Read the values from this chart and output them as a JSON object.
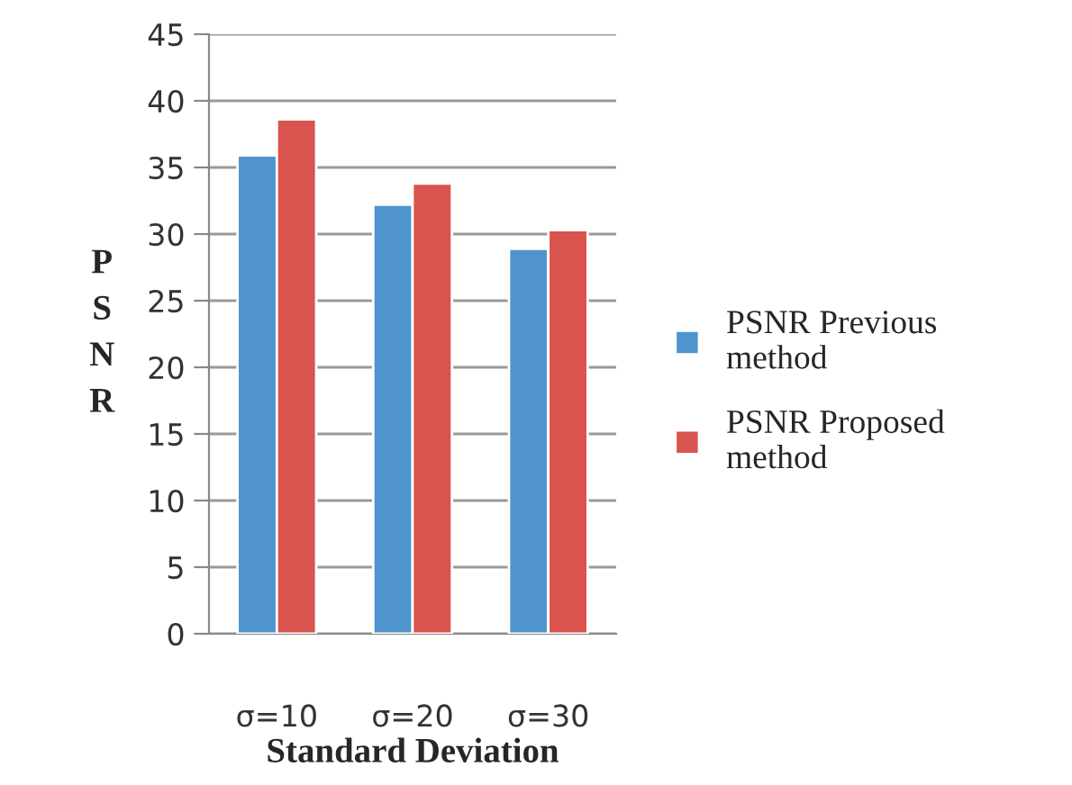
{
  "chart_data": {
    "type": "bar",
    "xlabel": "Standard Deviation",
    "ylabel": "PSNR",
    "categories": [
      "σ=10",
      "σ=20",
      "σ=30"
    ],
    "series": [
      {
        "name": "PSNR Previous method",
        "color": "#4f94cd",
        "values": [
          35.9,
          32.2,
          28.9
        ]
      },
      {
        "name": "PSNR Proposed method",
        "color": "#d9534f",
        "values": [
          38.6,
          33.8,
          30.3
        ]
      }
    ],
    "ylim": [
      0,
      45
    ],
    "yticks": [
      0,
      5,
      10,
      15,
      20,
      25,
      30,
      35,
      40,
      45
    ],
    "grid": "y",
    "legend": "right"
  }
}
